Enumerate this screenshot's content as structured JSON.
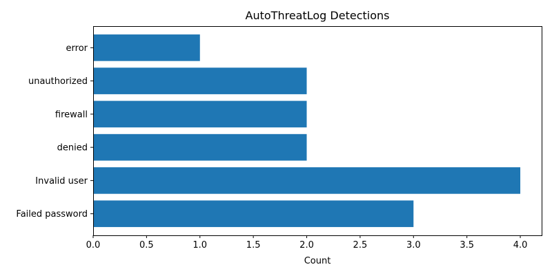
{
  "chart_data": {
    "type": "bar",
    "orientation": "horizontal",
    "title": "AutoThreatLog Detections",
    "xlabel": "Count",
    "ylabel": "",
    "categories": [
      "Failed password",
      "Invalid user",
      "denied",
      "firewall",
      "unauthorized",
      "error"
    ],
    "values": [
      3,
      4,
      2,
      2,
      2,
      1
    ],
    "xlim": [
      0,
      4.2
    ],
    "xticks": [
      "0.0",
      "0.5",
      "1.0",
      "1.5",
      "2.0",
      "2.5",
      "3.0",
      "3.5",
      "4.0"
    ],
    "grid": false,
    "legend": "none",
    "bar_color": "#1f77b4"
  }
}
